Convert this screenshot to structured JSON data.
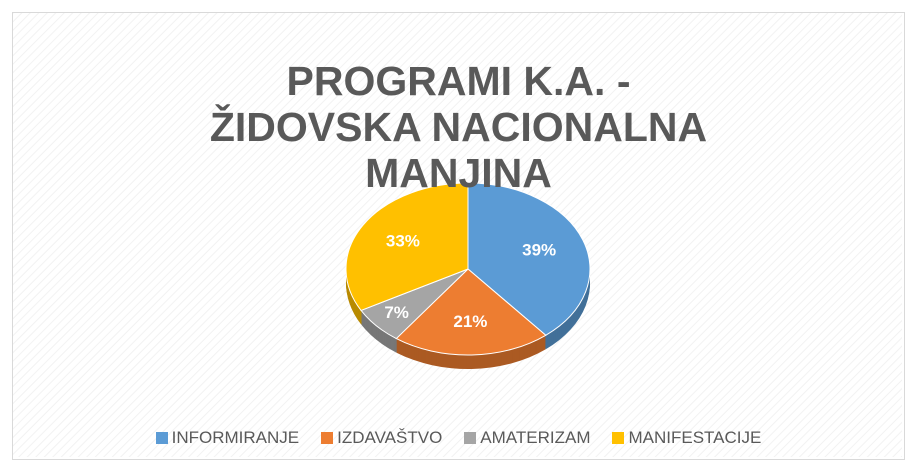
{
  "chart_data": {
    "type": "pie",
    "title": "PROGRAMI K.A. - ŽIDOVSKA NACIONALNA MANJINA",
    "categories": [
      "INFORMIRANJE",
      "IZDAVAŠTVO",
      "AMATERIZAM",
      "MANIFESTACIJE"
    ],
    "values": [
      39,
      21,
      7,
      33
    ],
    "value_labels": [
      "39%",
      "21%",
      "7%",
      "33%"
    ],
    "colors": [
      "#5b9bd5",
      "#ed7d31",
      "#a5a5a5",
      "#ffc000"
    ],
    "legend": "bottom"
  }
}
